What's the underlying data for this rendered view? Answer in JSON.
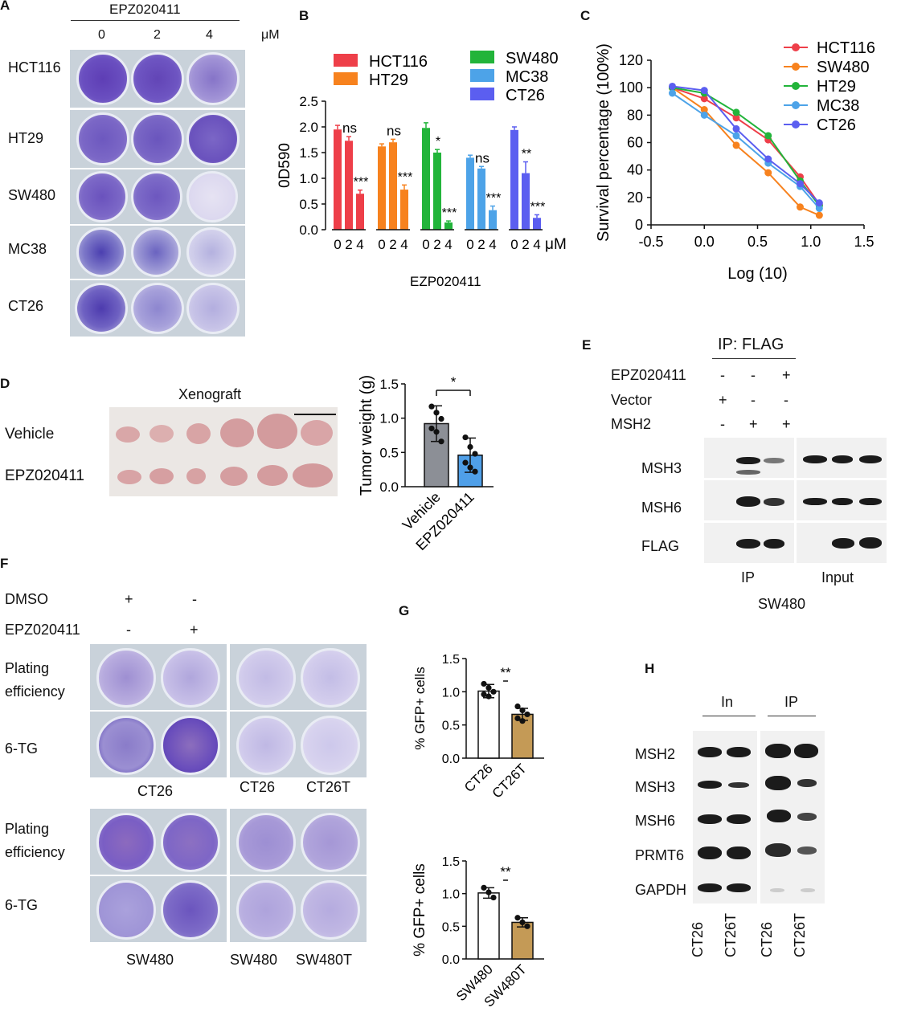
{
  "panels": {
    "a": "A",
    "b": "B",
    "c": "C",
    "d": "D",
    "e": "E",
    "f": "F",
    "g": "G",
    "h": "H"
  },
  "panelA": {
    "treatment": "EPZ020411",
    "doses": [
      "0",
      "2",
      "4"
    ],
    "unit": "μM",
    "rows": [
      "HCT116",
      "HT29",
      "SW480",
      "MC38",
      "CT26"
    ]
  },
  "panelD": {
    "title": "Xenograft",
    "rows": [
      "Vehicle",
      "EPZ020411"
    ]
  },
  "panelE": {
    "header": "IP: FLAG",
    "conditions": [
      {
        "name": "EPZ020411",
        "signs": [
          "-",
          "-",
          "+"
        ]
      },
      {
        "name": "Vector",
        "signs": [
          "+",
          "-",
          "-"
        ]
      },
      {
        "name": "MSH2",
        "signs": [
          "-",
          "+",
          "+"
        ]
      }
    ],
    "blots": [
      "MSH3",
      "MSH6",
      "FLAG"
    ],
    "lanes": [
      "IP",
      "Input"
    ],
    "cell_line": "SW480"
  },
  "panelF": {
    "conditions": [
      {
        "name": "DMSO",
        "signs": [
          "+",
          "-"
        ]
      },
      {
        "name": "EPZ020411",
        "signs": [
          "-",
          "+"
        ]
      }
    ],
    "row_plating": "Plating efficiency",
    "row_6tg": "6-TG",
    "top_left": "CT26",
    "top_right": [
      "CT26",
      "CT26T"
    ],
    "bottom_left": "SW480",
    "bottom_right": [
      "SW480",
      "SW480T"
    ]
  },
  "panelH": {
    "groups": [
      "In",
      "IP"
    ],
    "blots": [
      "MSH2",
      "MSH3",
      "MSH6",
      "PRMT6",
      "GAPDH"
    ],
    "lanes": [
      "CT26",
      "CT26T",
      "CT26",
      "CT26T"
    ]
  },
  "chart_data": [
    {
      "id": "B",
      "type": "bar",
      "ylabel": "0D590",
      "xlabel": "EZP020411",
      "x_unit": "μM",
      "ylim": [
        0,
        2.5
      ],
      "yticks": [
        0.0,
        0.5,
        1.0,
        1.5,
        2.0,
        2.5
      ],
      "categories": [
        "0",
        "2",
        "4"
      ],
      "series": [
        {
          "name": "HCT116",
          "color": "#ee3f49",
          "values": [
            1.95,
            1.73,
            0.7
          ],
          "errors": [
            0.08,
            0.08,
            0.07
          ],
          "sig": [
            "",
            "ns",
            "***"
          ]
        },
        {
          "name": "HT29",
          "color": "#f7821e",
          "values": [
            1.62,
            1.7,
            0.78
          ],
          "errors": [
            0.05,
            0.06,
            0.09
          ],
          "sig": [
            "",
            "ns",
            "***"
          ]
        },
        {
          "name": "SW480",
          "color": "#22b43a",
          "values": [
            1.98,
            1.5,
            0.14
          ],
          "errors": [
            0.1,
            0.06,
            0.03
          ],
          "sig": [
            "",
            "*",
            "***"
          ]
        },
        {
          "name": "MC38",
          "color": "#4da3e8",
          "values": [
            1.4,
            1.19,
            0.38
          ],
          "errors": [
            0.05,
            0.04,
            0.08
          ],
          "sig": [
            "",
            "ns",
            "***"
          ]
        },
        {
          "name": "CT26",
          "color": "#5b5ef0",
          "values": [
            1.94,
            1.1,
            0.23
          ],
          "errors": [
            0.06,
            0.22,
            0.06
          ],
          "sig": [
            "",
            "**",
            "***"
          ]
        }
      ]
    },
    {
      "id": "C",
      "type": "line",
      "ylabel": "Survival percentage (100%)",
      "xlabel": "Log (10)",
      "xlim": [
        -0.5,
        1.5
      ],
      "ylim": [
        0,
        120
      ],
      "xticks": [
        -0.5,
        0.0,
        0.5,
        1.0,
        1.5
      ],
      "yticks": [
        0,
        20,
        40,
        60,
        80,
        100,
        120
      ],
      "x": [
        -0.3,
        0.0,
        0.3,
        0.6,
        0.9,
        1.08
      ],
      "series": [
        {
          "name": "HCT116",
          "color": "#ee3f49",
          "values": [
            100,
            92,
            78,
            62,
            35,
            15
          ]
        },
        {
          "name": "SW480",
          "color": "#f7821e",
          "values": [
            100,
            84,
            58,
            38,
            13,
            7
          ]
        },
        {
          "name": "HT29",
          "color": "#22b43a",
          "values": [
            100,
            96,
            82,
            65,
            32,
            14
          ]
        },
        {
          "name": "MC38",
          "color": "#4da3e8",
          "values": [
            96,
            80,
            65,
            45,
            28,
            12
          ]
        },
        {
          "name": "CT26",
          "color": "#5b5ef0",
          "values": [
            101,
            98,
            70,
            48,
            30,
            16
          ]
        }
      ]
    },
    {
      "id": "D",
      "type": "bar",
      "ylabel": "Tumor weight (g)",
      "categories": [
        "Vehicle",
        "EPZ020411"
      ],
      "values": [
        0.92,
        0.46
      ],
      "errors": [
        0.26,
        0.25
      ],
      "colors": [
        "#8c8f96",
        "#4f9fe8"
      ],
      "points": [
        [
          1.17,
          1.08,
          0.99,
          0.85,
          0.8,
          0.66
        ],
        [
          0.72,
          0.58,
          0.48,
          0.35,
          0.28,
          0.22
        ]
      ],
      "ylim": [
        0,
        1.5
      ],
      "yticks": [
        0.0,
        0.5,
        1.0,
        1.5
      ],
      "sig": "*"
    },
    {
      "id": "G1",
      "type": "bar",
      "ylabel": "% GFP+ cells",
      "categories": [
        "CT26",
        "CT26T"
      ],
      "values": [
        1.01,
        0.66
      ],
      "errors": [
        0.1,
        0.09
      ],
      "colors": [
        "#ffffff",
        "#c49a56"
      ],
      "points": [
        [
          1.12,
          1.06,
          1.0,
          0.96,
          0.93
        ],
        [
          0.78,
          0.72,
          0.66,
          0.6,
          0.56
        ]
      ],
      "ylim": [
        0,
        1.5
      ],
      "yticks": [
        0.0,
        0.5,
        1.0,
        1.5
      ],
      "sig": "**"
    },
    {
      "id": "G2",
      "type": "bar",
      "ylabel": "% GFP+ cells",
      "categories": [
        "SW480",
        "SW480T"
      ],
      "values": [
        1.01,
        0.56
      ],
      "errors": [
        0.08,
        0.07
      ],
      "colors": [
        "#ffffff",
        "#c49a56"
      ],
      "points": [
        [
          1.09,
          1.02,
          0.94
        ],
        [
          0.63,
          0.56,
          0.5
        ]
      ],
      "ylim": [
        0,
        1.5
      ],
      "yticks": [
        0.0,
        0.5,
        1.0,
        1.5
      ],
      "sig": "**"
    }
  ]
}
